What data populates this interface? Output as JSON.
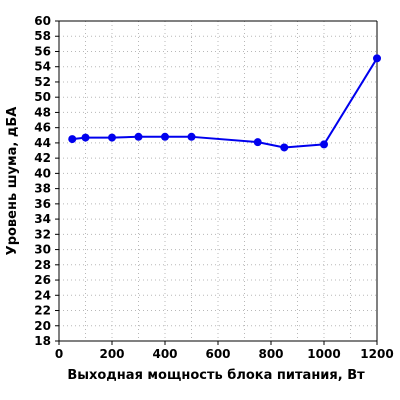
{
  "chart_data": {
    "type": "line",
    "xlabel": "Выходная мощность блока питания, Вт",
    "ylabel": "Уровень шума, дБА",
    "xlim": [
      0,
      1200
    ],
    "ylim": [
      18,
      60
    ],
    "xticks": [
      0,
      200,
      400,
      600,
      800,
      1000,
      1200
    ],
    "yticks": [
      18,
      20,
      22,
      24,
      26,
      28,
      30,
      32,
      34,
      36,
      38,
      40,
      42,
      44,
      46,
      48,
      50,
      52,
      54,
      56,
      58,
      60
    ],
    "grid": true,
    "series": [
      {
        "color": "#0000ee",
        "x": [
          50,
          100,
          200,
          300,
          400,
          500,
          750,
          850,
          1000,
          1200
        ],
        "y": [
          44.5,
          44.7,
          44.7,
          44.8,
          44.8,
          44.8,
          44.1,
          43.4,
          43.8,
          55.1
        ]
      }
    ]
  }
}
